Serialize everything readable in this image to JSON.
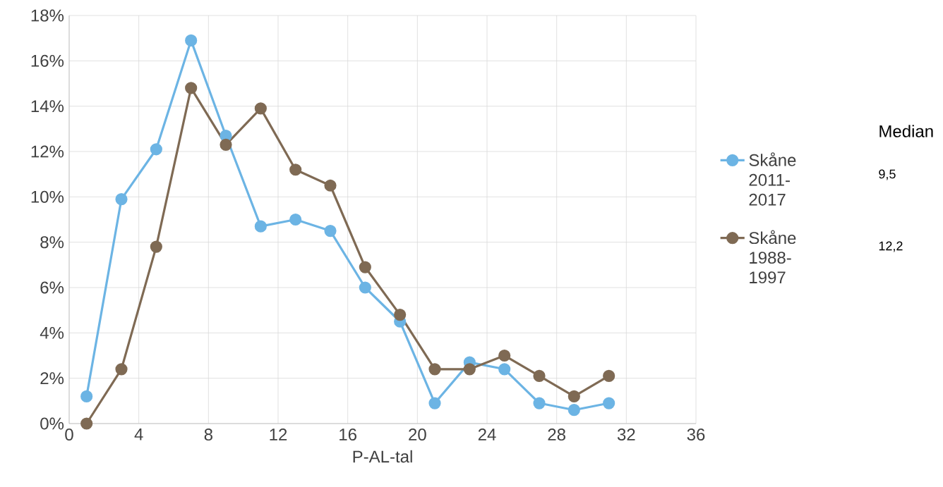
{
  "chart_data": {
    "type": "line",
    "xlabel": "P-AL-tal",
    "x": [
      1,
      3,
      5,
      7,
      9,
      11,
      13,
      15,
      17,
      19,
      21,
      23,
      25,
      27,
      29,
      31
    ],
    "series": [
      {
        "name": "Skåne 2011-2017",
        "color": "#6cb4e4",
        "values": [
          1.2,
          9.9,
          12.1,
          16.9,
          12.7,
          8.7,
          9.0,
          8.5,
          6.0,
          4.5,
          0.9,
          2.7,
          2.4,
          0.9,
          0.6,
          0.9
        ]
      },
      {
        "name": "Skåne 1988-1997",
        "color": "#7f6a54",
        "values": [
          0,
          2.4,
          7.8,
          14.8,
          12.3,
          13.9,
          11.2,
          10.5,
          6.9,
          4.8,
          2.4,
          2.4,
          3.0,
          2.1,
          1.2,
          2.1
        ]
      }
    ],
    "xlim": [
      0,
      36
    ],
    "xticks": [
      0,
      4,
      8,
      12,
      16,
      20,
      24,
      28,
      32,
      36
    ],
    "ylim": [
      0,
      18
    ],
    "yticks": [
      {
        "value": 0,
        "label": "0%"
      },
      {
        "value": 2,
        "label": "2%"
      },
      {
        "value": 4,
        "label": "4%"
      },
      {
        "value": 6,
        "label": "6%"
      },
      {
        "value": 8,
        "label": "8%"
      },
      {
        "value": 10,
        "label": "10%"
      },
      {
        "value": 12,
        "label": "12%"
      },
      {
        "value": 14,
        "label": "14%"
      },
      {
        "value": 16,
        "label": "16%"
      },
      {
        "value": 18,
        "label": "18%"
      }
    ],
    "grid": true,
    "legend": "right",
    "marker": "circle",
    "line_style": "solid",
    "annotations": [
      "Median",
      "9,5",
      "12,2"
    ]
  }
}
